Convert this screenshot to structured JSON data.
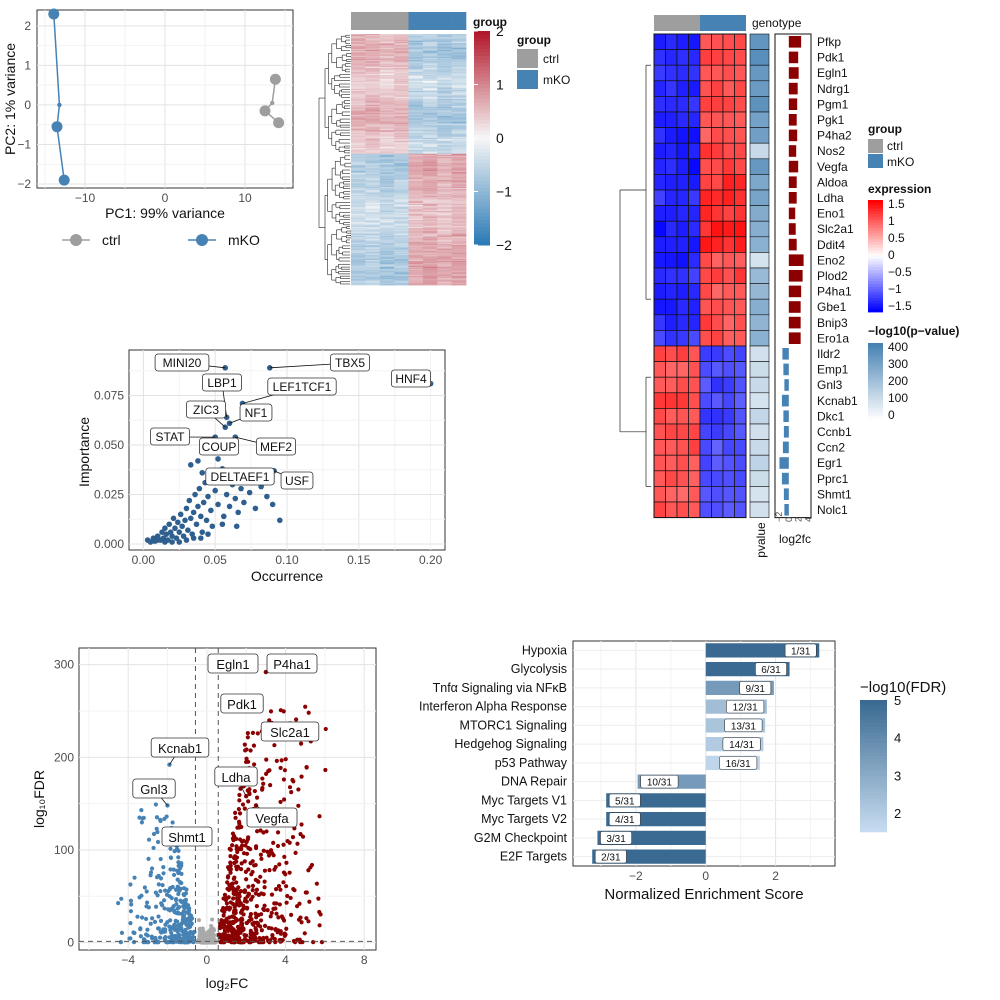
{
  "chart_data": [
    {
      "id": "pca",
      "type": "scatter",
      "xlabel": "PC1: 99% variance",
      "ylabel": "PC2: 1% variance",
      "xlim": [
        -16,
        16
      ],
      "ylim": [
        -2.1,
        2.4
      ],
      "xticks": [
        -10,
        0,
        10
      ],
      "yticks": [
        -2,
        -1,
        0,
        1,
        2
      ],
      "series": [
        {
          "name": "ctrl",
          "color": "#9e9e9e",
          "points": [
            [
              13.8,
              0.65
            ],
            [
              13.4,
              0.05
            ],
            [
              12.5,
              -0.15
            ],
            [
              14.2,
              -0.45
            ]
          ]
        },
        {
          "name": "mKO",
          "color": "#4682b4",
          "points": [
            [
              -13.9,
              2.3
            ],
            [
              -13.2,
              0.0
            ],
            [
              -13.5,
              -0.55
            ],
            [
              -12.6,
              -1.9
            ]
          ]
        }
      ],
      "legend": {
        "position": "bottom",
        "labels": [
          "ctrl",
          "mKO"
        ]
      }
    },
    {
      "id": "cluster-heatmap",
      "type": "heatmap",
      "legend_title": "group",
      "groups": [
        {
          "name": "ctrl",
          "color": "#9e9e9e"
        },
        {
          "name": "mKO",
          "color": "#4682b4"
        }
      ],
      "samples": [
        "ctrl",
        "ctrl",
        "ctrl",
        "ctrl",
        "mKO",
        "mKO",
        "mKO",
        "mKO"
      ],
      "color_scale": {
        "min": -2,
        "max": 2,
        "ticks": [
          2,
          1,
          0,
          -1,
          -2
        ],
        "low": "#2c7bb6",
        "mid": "#f7f7f7",
        "high": "#b2182b"
      }
    },
    {
      "id": "gene-heatmap",
      "type": "heatmap",
      "column_header": "genotype",
      "genes": [
        "Pfkp",
        "Pdk1",
        "Egln1",
        "Ndrg1",
        "Pgm1",
        "Pgk1",
        "P4ha2",
        "Nos2",
        "Vegfa",
        "Aldoa",
        "Ldha",
        "Eno1",
        "Slc2a1",
        "Ddit4",
        "Eno2",
        "Plod2",
        "P4ha1",
        "Gbe1",
        "Bnip3",
        "Ero1a",
        "Ildr2",
        "Emp1",
        "Gnl3",
        "Kcnab1",
        "Dkc1",
        "Ccnb1",
        "Ccn2",
        "Egr1",
        "Pprc1",
        "Shmt1",
        "Nolc1"
      ],
      "ctrl_expression": [
        -1.3,
        -1.3,
        -1.2,
        -1.3,
        -1.2,
        -1.3,
        -1.3,
        -1.3,
        -1.3,
        -1.3,
        -1.2,
        -1.3,
        -1.3,
        -1.3,
        -1.3,
        -1.2,
        -1.3,
        -1.3,
        -1.3,
        -1.2,
        1.1,
        1.0,
        1.0,
        1.1,
        1.0,
        1.0,
        1.0,
        1.0,
        1.0,
        1.0,
        1.0
      ],
      "mko_expression": [
        1.0,
        1.1,
        1.0,
        1.0,
        1.1,
        1.0,
        1.0,
        1.1,
        1.1,
        1.2,
        1.3,
        1.2,
        1.3,
        1.3,
        1.0,
        1.1,
        1.0,
        1.0,
        1.0,
        1.0,
        -1.1,
        -1.0,
        -1.1,
        -1.0,
        -1.1,
        -1.1,
        -1.0,
        -1.0,
        -1.1,
        -1.0,
        -1.0
      ],
      "neg_log10_pvalue": [
        340,
        360,
        330,
        320,
        350,
        300,
        310,
        120,
        330,
        280,
        290,
        270,
        260,
        250,
        90,
        220,
        230,
        260,
        240,
        250,
        100,
        110,
        120,
        90,
        130,
        100,
        120,
        140,
        110,
        90,
        100
      ],
      "log2fc": [
        2.5,
        1.9,
        2.0,
        1.8,
        1.7,
        1.6,
        1.7,
        1.5,
        1.9,
        1.6,
        1.6,
        1.3,
        1.4,
        1.6,
        3.0,
        2.8,
        2.5,
        2.4,
        2.4,
        2.4,
        -1.3,
        -1.1,
        -0.9,
        -1.4,
        -1.1,
        -1.0,
        -1.2,
        -1.9,
        -1.4,
        -1.0,
        -0.9
      ],
      "legend": {
        "group_title": "group",
        "groups": [
          "ctrl",
          "mKO"
        ],
        "expression_title": "expression",
        "expression_ticks": [
          "1.5",
          "1",
          "0.5",
          "0",
          "−0.5",
          "−1",
          "−1.5"
        ],
        "pvalue_title": "−log10(p−value)",
        "pvalue_ticks": [
          "400",
          "300",
          "200",
          "100",
          "0"
        ],
        "pvalue_label": "pvalue",
        "log2fc_label": "log2fc",
        "log2fc_ticks": [
          "−2",
          "0",
          "2",
          "4"
        ]
      }
    },
    {
      "id": "motif-scatter",
      "type": "scatter",
      "xlabel": "Occurrence",
      "ylabel": "Importance",
      "xlim": [
        -0.01,
        0.21
      ],
      "ylim": [
        -0.003,
        0.098
      ],
      "xticks": [
        "0.00",
        "0.05",
        "0.10",
        "0.15",
        "0.20"
      ],
      "yticks": [
        "0.000",
        "0.025",
        "0.050",
        "0.075"
      ],
      "labeled": [
        {
          "label": "MINI20",
          "x": 0.057,
          "y": 0.089
        },
        {
          "label": "TBX5",
          "x": 0.088,
          "y": 0.089
        },
        {
          "label": "HNF4",
          "x": 0.2,
          "y": 0.081
        },
        {
          "label": "LBP1",
          "x": 0.058,
          "y": 0.064
        },
        {
          "label": "LEF1TCF1",
          "x": 0.069,
          "y": 0.071
        },
        {
          "label": "ZIC3",
          "x": 0.057,
          "y": 0.059
        },
        {
          "label": "NF1",
          "x": 0.06,
          "y": 0.061
        },
        {
          "label": "STAT",
          "x": 0.05,
          "y": 0.054
        },
        {
          "label": "COUP",
          "x": 0.043,
          "y": 0.047
        },
        {
          "label": "MEF2",
          "x": 0.064,
          "y": 0.054
        },
        {
          "label": "DELTAEF1",
          "x": 0.055,
          "y": 0.038
        },
        {
          "label": "USF",
          "x": 0.091,
          "y": 0.037
        }
      ],
      "points": [
        [
          0.003,
          0.002
        ],
        [
          0.005,
          0.001
        ],
        [
          0.007,
          0.003
        ],
        [
          0.008,
          0.0015
        ],
        [
          0.01,
          0.004
        ],
        [
          0.012,
          0.002
        ],
        [
          0.013,
          0.006
        ],
        [
          0.014,
          0.003
        ],
        [
          0.015,
          0.008
        ],
        [
          0.016,
          0.005
        ],
        [
          0.017,
          0.002
        ],
        [
          0.018,
          0.01
        ],
        [
          0.019,
          0.006
        ],
        [
          0.02,
          0.004
        ],
        [
          0.021,
          0.013
        ],
        [
          0.022,
          0.008
        ],
        [
          0.023,
          0.003
        ],
        [
          0.024,
          0.011
        ],
        [
          0.025,
          0.006
        ],
        [
          0.026,
          0.015
        ],
        [
          0.027,
          0.009
        ],
        [
          0.028,
          0.004
        ],
        [
          0.029,
          0.012
        ],
        [
          0.03,
          0.018
        ],
        [
          0.031,
          0.007
        ],
        [
          0.032,
          0.022
        ],
        [
          0.033,
          0.013
        ],
        [
          0.034,
          0.005
        ],
        [
          0.035,
          0.016
        ],
        [
          0.036,
          0.025
        ],
        [
          0.037,
          0.01
        ],
        [
          0.038,
          0.019
        ],
        [
          0.039,
          0.028
        ],
        [
          0.04,
          0.014
        ],
        [
          0.041,
          0.006
        ],
        [
          0.042,
          0.021
        ],
        [
          0.043,
          0.031
        ],
        [
          0.044,
          0.012
        ],
        [
          0.045,
          0.024
        ],
        [
          0.046,
          0.034
        ],
        [
          0.047,
          0.017
        ],
        [
          0.048,
          0.009
        ],
        [
          0.05,
          0.027
        ],
        [
          0.052,
          0.02
        ],
        [
          0.054,
          0.032
        ],
        [
          0.056,
          0.014
        ],
        [
          0.058,
          0.025
        ],
        [
          0.06,
          0.019
        ],
        [
          0.062,
          0.03
        ],
        [
          0.064,
          0.023
        ],
        [
          0.066,
          0.016
        ],
        [
          0.068,
          0.028
        ],
        [
          0.07,
          0.021
        ],
        [
          0.074,
          0.026
        ],
        [
          0.078,
          0.018
        ],
        [
          0.082,
          0.029
        ],
        [
          0.086,
          0.024
        ],
        [
          0.09,
          0.02
        ],
        [
          0.095,
          0.012
        ],
        [
          0.01,
          0.002
        ],
        [
          0.02,
          0.001
        ],
        [
          0.03,
          0.002
        ],
        [
          0.04,
          0.003
        ],
        [
          0.045,
          0.005
        ],
        [
          0.035,
          0.003
        ],
        [
          0.025,
          0.001
        ],
        [
          0.015,
          0.001
        ],
        [
          0.055,
          0.01
        ],
        [
          0.065,
          0.009
        ],
        [
          0.038,
          0.042
        ],
        [
          0.048,
          0.047
        ],
        [
          0.033,
          0.04
        ],
        [
          0.041,
          0.036
        ],
        [
          0.052,
          0.043
        ]
      ]
    },
    {
      "id": "volcano",
      "type": "scatter",
      "xlabel": "log₂FC",
      "ylabel": "log₁₀FDR",
      "xlim": [
        -6.5,
        8.6
      ],
      "ylim": [
        -8,
        318
      ],
      "xticks": [
        -4,
        0,
        4,
        8
      ],
      "yticks": [
        0,
        100,
        200,
        300
      ],
      "thresholds": {
        "x": [
          -0.58,
          0.58
        ],
        "y": 1.3
      },
      "colors": {
        "down": "#4682b4",
        "up": "#8b0000",
        "ns": "#a9a9a9"
      },
      "labeled": [
        {
          "label": "Egln1",
          "x": 2.1,
          "y": 296
        },
        {
          "label": "P4ha1",
          "x": 3.0,
          "y": 292
        },
        {
          "label": "Pdk1",
          "x": 2.2,
          "y": 262
        },
        {
          "label": "Slc2a1",
          "x": 2.8,
          "y": 228
        },
        {
          "label": "Kcnab1",
          "x": -1.9,
          "y": 192
        },
        {
          "label": "Ldha",
          "x": 2.0,
          "y": 158
        },
        {
          "label": "Gnl3",
          "x": -2.0,
          "y": 148
        },
        {
          "label": "Vegfa",
          "x": 2.5,
          "y": 148
        },
        {
          "label": "Shmt1",
          "x": -1.1,
          "y": 118
        }
      ]
    },
    {
      "id": "gsea",
      "type": "bar",
      "orientation": "horizontal",
      "xlabel": "Normalized Enrichment Score",
      "xlim": [
        -3.8,
        3.7
      ],
      "xticks": [
        -2,
        0,
        2
      ],
      "categories": [
        "Hypoxia",
        "Glycolysis",
        "Tnfα Signaling via NFκB",
        "Interferon Alpha Response",
        "MTORC1 Signaling",
        "Hedgehog Signaling",
        "p53 Pathway",
        "DNA Repair",
        "Myc Targets V1",
        "Myc Targets V2",
        "G2M Checkpoint",
        "E2F Targets"
      ],
      "values": [
        3.25,
        2.4,
        1.95,
        1.75,
        1.7,
        1.65,
        1.55,
        -1.95,
        -2.85,
        -2.85,
        -3.1,
        -3.25
      ],
      "neg_log10_fdr": [
        5,
        5,
        3.5,
        2.4,
        2.2,
        2.0,
        1.7,
        3.5,
        5,
        5,
        5,
        5
      ],
      "ranks": [
        "1/31",
        "6/31",
        "9/31",
        "12/31",
        "13/31",
        "14/31",
        "16/31",
        "10/31",
        "5/31",
        "4/31",
        "3/31",
        "2/31"
      ],
      "legend": {
        "title": "−log10(FDR)",
        "ticks": [
          "5",
          "4",
          "3",
          "2"
        ],
        "min": 1.5,
        "max": 5
      }
    }
  ]
}
